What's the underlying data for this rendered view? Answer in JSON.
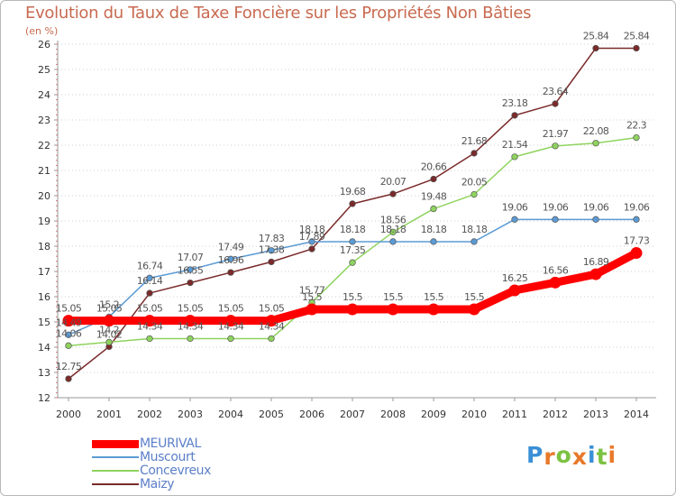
{
  "title": "Evolution du Taux de Taxe Foncière sur les Propriétés Non Bâties",
  "unit_label": "(en %)",
  "logo": {
    "letters": [
      "P",
      "r",
      "o",
      "x",
      "i",
      "t",
      "i"
    ],
    "colors": [
      "#3a8fd6",
      "#e8792b",
      "#7cc242",
      "#e8792b",
      "#3a8fd6",
      "#7cc242",
      "#e8792b"
    ]
  },
  "chart_data": {
    "type": "line",
    "x": [
      "2000",
      "2001",
      "2002",
      "2003",
      "2004",
      "2005",
      "2006",
      "2007",
      "2008",
      "2009",
      "2010",
      "2011",
      "2012",
      "2013",
      "2014"
    ],
    "ylim": [
      12,
      26
    ],
    "yticks": [
      "12",
      "13",
      "14",
      "15",
      "16",
      "17",
      "18",
      "19",
      "20",
      "21",
      "22",
      "23",
      "24",
      "25",
      "26"
    ],
    "grid": "horizontal-dotted",
    "legend_position": "bottom-left",
    "series": [
      {
        "name": "MEURIVAL",
        "color": "#ff0000",
        "emphasis": true,
        "values": [
          15.05,
          15.05,
          15.05,
          15.05,
          15.05,
          15.05,
          15.5,
          15.5,
          15.5,
          15.5,
          15.5,
          16.25,
          16.56,
          16.89,
          17.73
        ],
        "labels": [
          "15.05",
          "15.05",
          "15.05",
          "15.05",
          "15.05",
          "15.05",
          "15.5",
          "15.5",
          "15.5",
          "15.5",
          "15.5",
          "16.25",
          "16.56",
          "16.89",
          "17.73"
        ]
      },
      {
        "name": "Muscourt",
        "color": "#5b9bd5",
        "values": [
          14.49,
          15.2,
          16.74,
          17.07,
          17.49,
          17.83,
          18.18,
          18.18,
          18.18,
          18.18,
          18.18,
          19.06,
          19.06,
          19.06,
          19.06
        ],
        "labels": [
          "14.49",
          "15.2",
          "16.74",
          "17.07",
          "17.49",
          "17.83",
          "18.18",
          "18.18",
          "18.18",
          "18.18",
          "18.18",
          "19.06",
          "19.06",
          "19.06",
          "19.06"
        ]
      },
      {
        "name": "Concevreux",
        "color": "#8fd35f",
        "values": [
          14.06,
          14.2,
          14.34,
          14.34,
          14.34,
          14.34,
          15.77,
          17.35,
          18.56,
          19.48,
          20.05,
          21.54,
          21.97,
          22.08,
          22.3
        ],
        "labels": [
          "14.06",
          "14.2",
          "14.34",
          "14.34",
          "14.34",
          "14.34",
          "15.77",
          "17.35",
          "18.56",
          "19.48",
          "20.05",
          "21.54",
          "21.97",
          "22.08",
          "22.3"
        ]
      },
      {
        "name": "Maizy",
        "color": "#7a2a2a",
        "values": [
          12.75,
          14.02,
          16.14,
          16.55,
          16.96,
          17.38,
          17.89,
          19.68,
          20.07,
          20.66,
          21.68,
          23.18,
          23.64,
          25.84,
          25.84
        ],
        "labels": [
          "12.75",
          "14.02",
          "16.14",
          "16.55",
          "16.96",
          "17.38",
          "17.89",
          "19.68",
          "20.07",
          "20.66",
          "21.68",
          "23.18",
          "23.64",
          "25.84",
          "25.84"
        ]
      }
    ]
  }
}
